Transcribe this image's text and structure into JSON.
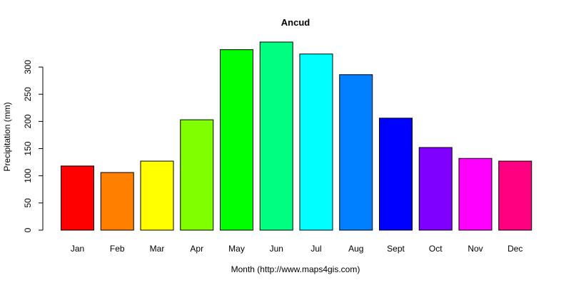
{
  "chart_data": {
    "type": "bar",
    "title": "Ancud",
    "xlabel": "Month (http://www.maps4gis.com)",
    "ylabel": "Precipitation (mm)",
    "categories": [
      "Jan",
      "Feb",
      "Mar",
      "Apr",
      "May",
      "Jun",
      "Jul",
      "Aug",
      "Sept",
      "Oct",
      "Nov",
      "Dec"
    ],
    "values": [
      118,
      106,
      127,
      203,
      332,
      346,
      324,
      286,
      206,
      152,
      132,
      127
    ],
    "colors": [
      "#FF0000",
      "#FF8000",
      "#FFFF00",
      "#80FF00",
      "#00FF00",
      "#00FF80",
      "#00FFFF",
      "#0080FF",
      "#0000FF",
      "#8000FF",
      "#FF00FF",
      "#FF0080"
    ],
    "yticks": [
      "0",
      "50",
      "100",
      "150",
      "200",
      "250",
      "300"
    ],
    "ylim": [
      0,
      350
    ],
    "grid": false,
    "legend": "none"
  }
}
